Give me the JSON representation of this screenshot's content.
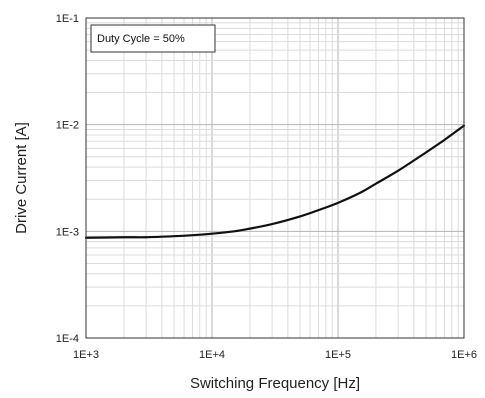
{
  "chart_data": {
    "type": "line",
    "title": "",
    "xlabel": "Switching Frequency [Hz]",
    "ylabel": "Drive Current [A]",
    "x_scale": "log",
    "y_scale": "log",
    "xlim": [
      1000,
      1000000
    ],
    "ylim": [
      0.0001,
      0.1
    ],
    "x_ticks": [
      1000,
      10000,
      100000,
      1000000
    ],
    "x_tick_labels": [
      "1E+3",
      "1E+4",
      "1E+5",
      "1E+6"
    ],
    "y_ticks": [
      0.0001,
      0.001,
      0.01,
      0.1
    ],
    "y_tick_labels": [
      "1E-4",
      "1E-3",
      "1E-2",
      "1E-1"
    ],
    "grid": true,
    "annotation": "Duty Cycle = 50%",
    "series": [
      {
        "color": "#111111",
        "x": [
          1000,
          2000,
          3000,
          5000,
          7000,
          10000,
          15000,
          20000,
          30000,
          50000,
          70000,
          100000,
          150000,
          200000,
          300000,
          500000,
          700000,
          1000000
        ],
        "y": [
          0.00087,
          0.00088,
          0.00088,
          0.0009,
          0.00092,
          0.00095,
          0.001,
          0.00106,
          0.00117,
          0.00138,
          0.00158,
          0.00185,
          0.0023,
          0.0028,
          0.0037,
          0.0055,
          0.0072,
          0.0098
        ]
      }
    ]
  }
}
